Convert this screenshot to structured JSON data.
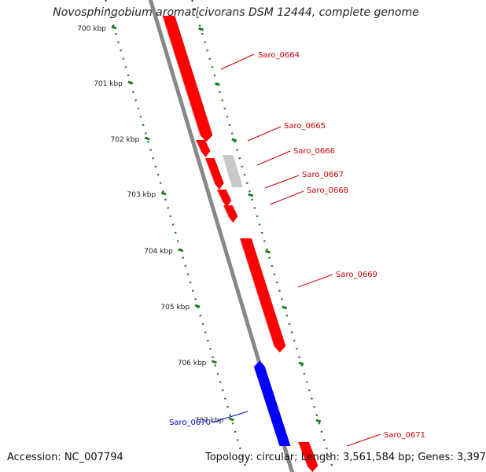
{
  "title": "Novosphingobium aromaticivorans DSM 12444, complete genome",
  "footer": {
    "accession": "Accession: NC_007794",
    "topology": "Topology: circular; Length: 3,561,584 bp; Genes: 3,397"
  },
  "colors": {
    "forward_gene": "#ff0000",
    "reverse_gene": "#0000ff",
    "pseudo_gene": "#c8c8c8",
    "backbone": "#888888",
    "ticks": "#1e7a1e",
    "label_forward": "#cc0000",
    "label_reverse": "#0000cc"
  },
  "ticks": [
    "700 kbp",
    "701 kbp",
    "702 kbp",
    "703 kbp",
    "704 kbp",
    "705 kbp",
    "706 kbp",
    "707 kbp"
  ],
  "genes": [
    {
      "name": "Saro_0664",
      "strand": "forward",
      "color": "#ff0000"
    },
    {
      "name": "Saro_0665",
      "strand": "forward",
      "color": "#ff0000"
    },
    {
      "name": "Saro_0666",
      "strand": "none",
      "color": "#c8c8c8"
    },
    {
      "name": "Saro_0667",
      "strand": "forward",
      "color": "#ff0000"
    },
    {
      "name": "Saro_0668",
      "strand": "forward",
      "color": "#ff0000"
    },
    {
      "name": "Saro_0669",
      "strand": "forward",
      "color": "#ff0000"
    },
    {
      "name": "Saro_0670",
      "strand": "reverse",
      "color": "#0000ff"
    },
    {
      "name": "Saro_0671",
      "strand": "forward",
      "color": "#ff0000"
    }
  ]
}
